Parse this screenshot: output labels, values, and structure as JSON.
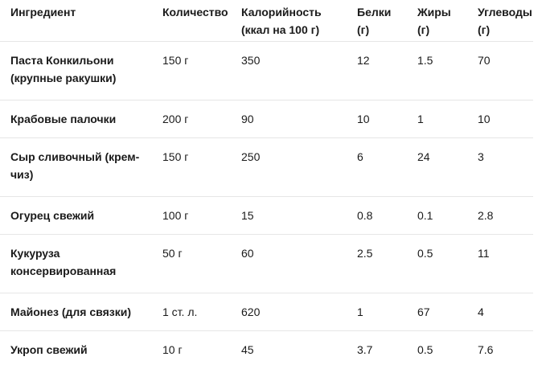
{
  "table": {
    "headers": [
      "Ингредиент",
      "Количество",
      "Калорийность (ккал на 100 г)",
      "Белки (г)",
      "Жиры (г)",
      "Углеводы (г)"
    ],
    "rows": [
      [
        "Паста Конкильони (крупные ракушки)",
        "150 г",
        "350",
        "12",
        "1.5",
        "70"
      ],
      [
        "Крабовые палочки",
        "200 г",
        "90",
        "10",
        "1",
        "10"
      ],
      [
        "Сыр сливочный (крем-чиз)",
        "150 г",
        "250",
        "6",
        "24",
        "3"
      ],
      [
        "Огурец свежий",
        "100 г",
        "15",
        "0.8",
        "0.1",
        "2.8"
      ],
      [
        "Кукуруза консервированная",
        "50 г",
        "60",
        "2.5",
        "0.5",
        "11"
      ],
      [
        "Майонез (для связки)",
        "1 ст. л.",
        "620",
        "1",
        "67",
        "4"
      ],
      [
        "Укроп свежий",
        "10 г",
        "45",
        "3.7",
        "0.5",
        "7.6"
      ]
    ]
  }
}
